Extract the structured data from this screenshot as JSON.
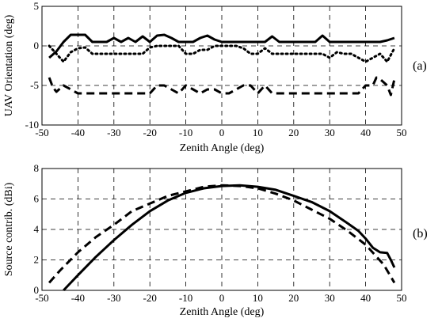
{
  "chart_data": [
    {
      "type": "line",
      "panel_label": "(a)",
      "xlabel": "Zenith Angle (deg)",
      "ylabel": "UAV Orientation (deg)",
      "xlim": [
        -50,
        50
      ],
      "ylim": [
        -10,
        5
      ],
      "xticks": [
        -50,
        -40,
        -30,
        -20,
        -10,
        0,
        10,
        20,
        30,
        40,
        50
      ],
      "yticks": [
        -10,
        -5,
        0,
        5
      ],
      "grid": true,
      "series": [
        {
          "style": "solid",
          "x": [
            -48,
            -46,
            -44,
            -42,
            -40,
            -38,
            -36,
            -34,
            -32,
            -30,
            -28,
            -26,
            -24,
            -22,
            -20,
            -18,
            -16,
            -14,
            -12,
            -10,
            -8,
            -6,
            -4,
            -2,
            0,
            2,
            4,
            6,
            8,
            10,
            12,
            14,
            16,
            18,
            20,
            22,
            24,
            26,
            28,
            30,
            32,
            34,
            36,
            38,
            40,
            42,
            44,
            46,
            48
          ],
          "y": [
            -1.5,
            -0.7,
            0.5,
            1.4,
            1.4,
            1.4,
            0.5,
            0.5,
            0.5,
            1.0,
            0.5,
            1.0,
            0.5,
            1.2,
            0.5,
            1.3,
            1.4,
            1.0,
            0.5,
            0.5,
            0.5,
            1.0,
            1.3,
            0.8,
            0.5,
            0.5,
            0.5,
            0.5,
            0.5,
            0.5,
            0.5,
            1.2,
            0.5,
            0.5,
            0.5,
            0.5,
            0.5,
            0.5,
            1.3,
            0.5,
            0.5,
            0.5,
            0.5,
            0.5,
            0.5,
            0.5,
            0.5,
            0.7,
            1.0
          ]
        },
        {
          "style": "dotted",
          "x": [
            -48,
            -46,
            -44,
            -42,
            -40,
            -38,
            -36,
            -34,
            -32,
            -30,
            -28,
            -26,
            -24,
            -22,
            -20,
            -18,
            -16,
            -14,
            -12,
            -10,
            -8,
            -6,
            -4,
            -2,
            0,
            2,
            4,
            6,
            8,
            10,
            12,
            14,
            16,
            18,
            20,
            22,
            24,
            26,
            28,
            30,
            32,
            34,
            36,
            38,
            40,
            42,
            44,
            46,
            48
          ],
          "y": [
            0.0,
            -1.0,
            -2.0,
            -0.8,
            -0.3,
            -0.2,
            -1.0,
            -1.0,
            -1.0,
            -1.0,
            -1.0,
            -1.0,
            -1.0,
            -1.0,
            -0.2,
            0.0,
            0.0,
            0.0,
            0.0,
            -1.0,
            -1.0,
            -0.5,
            -0.5,
            0.0,
            0.0,
            0.0,
            0.0,
            -0.3,
            -1.0,
            -1.0,
            -0.3,
            -1.0,
            -1.0,
            -1.0,
            -1.0,
            -1.0,
            -1.0,
            -1.0,
            -1.0,
            -1.5,
            -0.8,
            -1.0,
            -1.0,
            -1.5,
            -2.0,
            -1.5,
            -1.0,
            -2.0,
            -0.3
          ]
        },
        {
          "style": "dashed",
          "x": [
            -48,
            -47,
            -46,
            -44,
            -42,
            -40,
            -38,
            -36,
            -34,
            -32,
            -30,
            -28,
            -26,
            -24,
            -22,
            -20,
            -18,
            -16,
            -14,
            -12,
            -10,
            -8,
            -6,
            -4,
            -2,
            0,
            2,
            4,
            6,
            8,
            10,
            12,
            14,
            16,
            18,
            20,
            22,
            24,
            26,
            28,
            30,
            32,
            34,
            36,
            38,
            40,
            42,
            43,
            44,
            46,
            47,
            48
          ],
          "y": [
            -4.0,
            -5.2,
            -5.8,
            -5.0,
            -5.5,
            -6.0,
            -6.0,
            -6.0,
            -6.0,
            -6.0,
            -6.0,
            -6.0,
            -6.0,
            -6.0,
            -6.0,
            -6.0,
            -5.0,
            -5.0,
            -5.5,
            -6.0,
            -5.0,
            -5.5,
            -6.0,
            -5.5,
            -5.5,
            -6.0,
            -6.0,
            -5.5,
            -5.0,
            -5.0,
            -6.0,
            -5.0,
            -6.0,
            -6.0,
            -6.0,
            -6.0,
            -6.0,
            -6.0,
            -6.0,
            -6.0,
            -6.0,
            -6.0,
            -6.0,
            -6.0,
            -6.0,
            -5.0,
            -5.0,
            -4.0,
            -4.2,
            -5.0,
            -6.2,
            -4.2
          ]
        }
      ]
    },
    {
      "type": "line",
      "panel_label": "(b)",
      "xlabel": "Zenith Angle (deg)",
      "ylabel": "Source contrib. (dBi)",
      "xlim": [
        -50,
        50
      ],
      "ylim": [
        0,
        8
      ],
      "xticks": [
        -50,
        -40,
        -30,
        -20,
        -10,
        0,
        10,
        20,
        30,
        40,
        50
      ],
      "yticks": [
        0,
        2,
        4,
        6,
        8
      ],
      "grid": true,
      "series": [
        {
          "style": "solid",
          "x": [
            -44,
            -42,
            -40,
            -35,
            -30,
            -25,
            -20,
            -15,
            -10,
            -5,
            0,
            5,
            10,
            15,
            20,
            25,
            30,
            35,
            38,
            40,
            42,
            44,
            46,
            47,
            48
          ],
          "y": [
            0.0,
            0.5,
            1.0,
            2.2,
            3.3,
            4.3,
            5.2,
            5.9,
            6.4,
            6.7,
            6.85,
            6.9,
            6.8,
            6.6,
            6.2,
            5.8,
            5.2,
            4.4,
            3.9,
            3.4,
            2.8,
            2.5,
            2.45,
            2.0,
            1.5
          ]
        },
        {
          "style": "dashed",
          "x": [
            -48,
            -45,
            -40,
            -35,
            -30,
            -25,
            -20,
            -15,
            -10,
            -5,
            0,
            5,
            10,
            15,
            20,
            25,
            30,
            35,
            40,
            45,
            48
          ],
          "y": [
            0.5,
            1.3,
            2.5,
            3.5,
            4.3,
            5.2,
            5.7,
            6.2,
            6.5,
            6.8,
            6.9,
            6.85,
            6.7,
            6.35,
            5.9,
            5.3,
            4.7,
            3.9,
            3.0,
            1.7,
            0.5
          ]
        }
      ]
    }
  ]
}
